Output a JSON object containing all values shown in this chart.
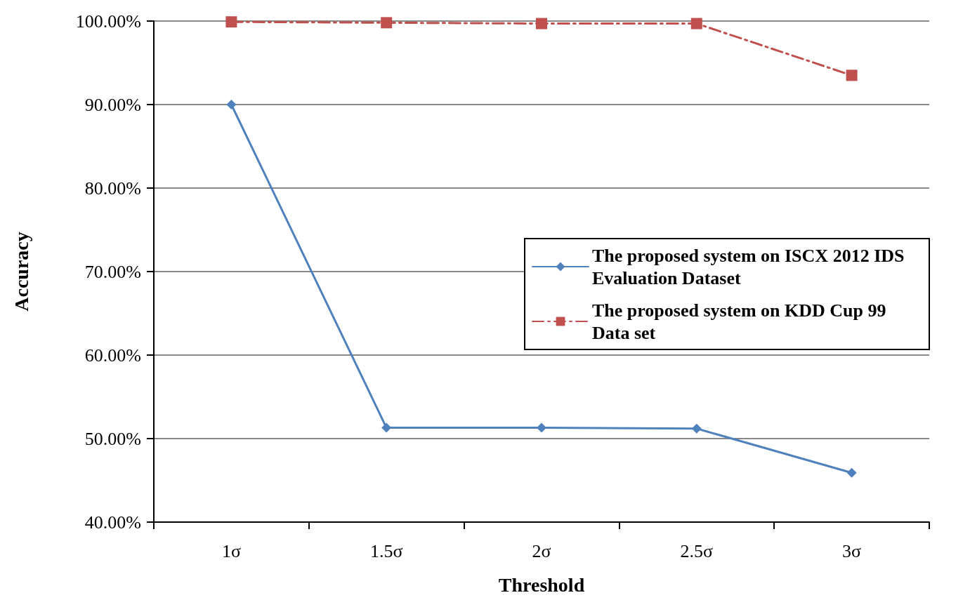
{
  "chart_data": {
    "type": "line",
    "xlabel": "Threshold",
    "ylabel": "Accuracy",
    "categories": [
      "1σ",
      "1.5σ",
      "2σ",
      "2.5σ",
      "3σ"
    ],
    "series": [
      {
        "name": "The proposed system on ISCX 2012 IDS Evaluation Dataset",
        "color": "#4f81bd",
        "marker": "diamond",
        "line_style": "solid",
        "values": [
          90.0,
          51.3,
          51.3,
          51.2,
          45.9
        ]
      },
      {
        "name": "The proposed system on KDD Cup 99 Data set",
        "color": "#c0504d",
        "marker": "square",
        "line_style": "dashed",
        "values": [
          99.9,
          99.8,
          99.7,
          99.7,
          93.5
        ]
      }
    ],
    "ylim": [
      40,
      100
    ],
    "yticks": [
      {
        "value": 40,
        "label": "40.00%"
      },
      {
        "value": 50,
        "label": "50.00%"
      },
      {
        "value": 60,
        "label": "60.00%"
      },
      {
        "value": 70,
        "label": "70.00%"
      },
      {
        "value": 80,
        "label": "80.00%"
      },
      {
        "value": 90,
        "label": "90.00%"
      },
      {
        "value": 100,
        "label": "100.00%"
      }
    ],
    "grid": "y",
    "legend": "right"
  }
}
